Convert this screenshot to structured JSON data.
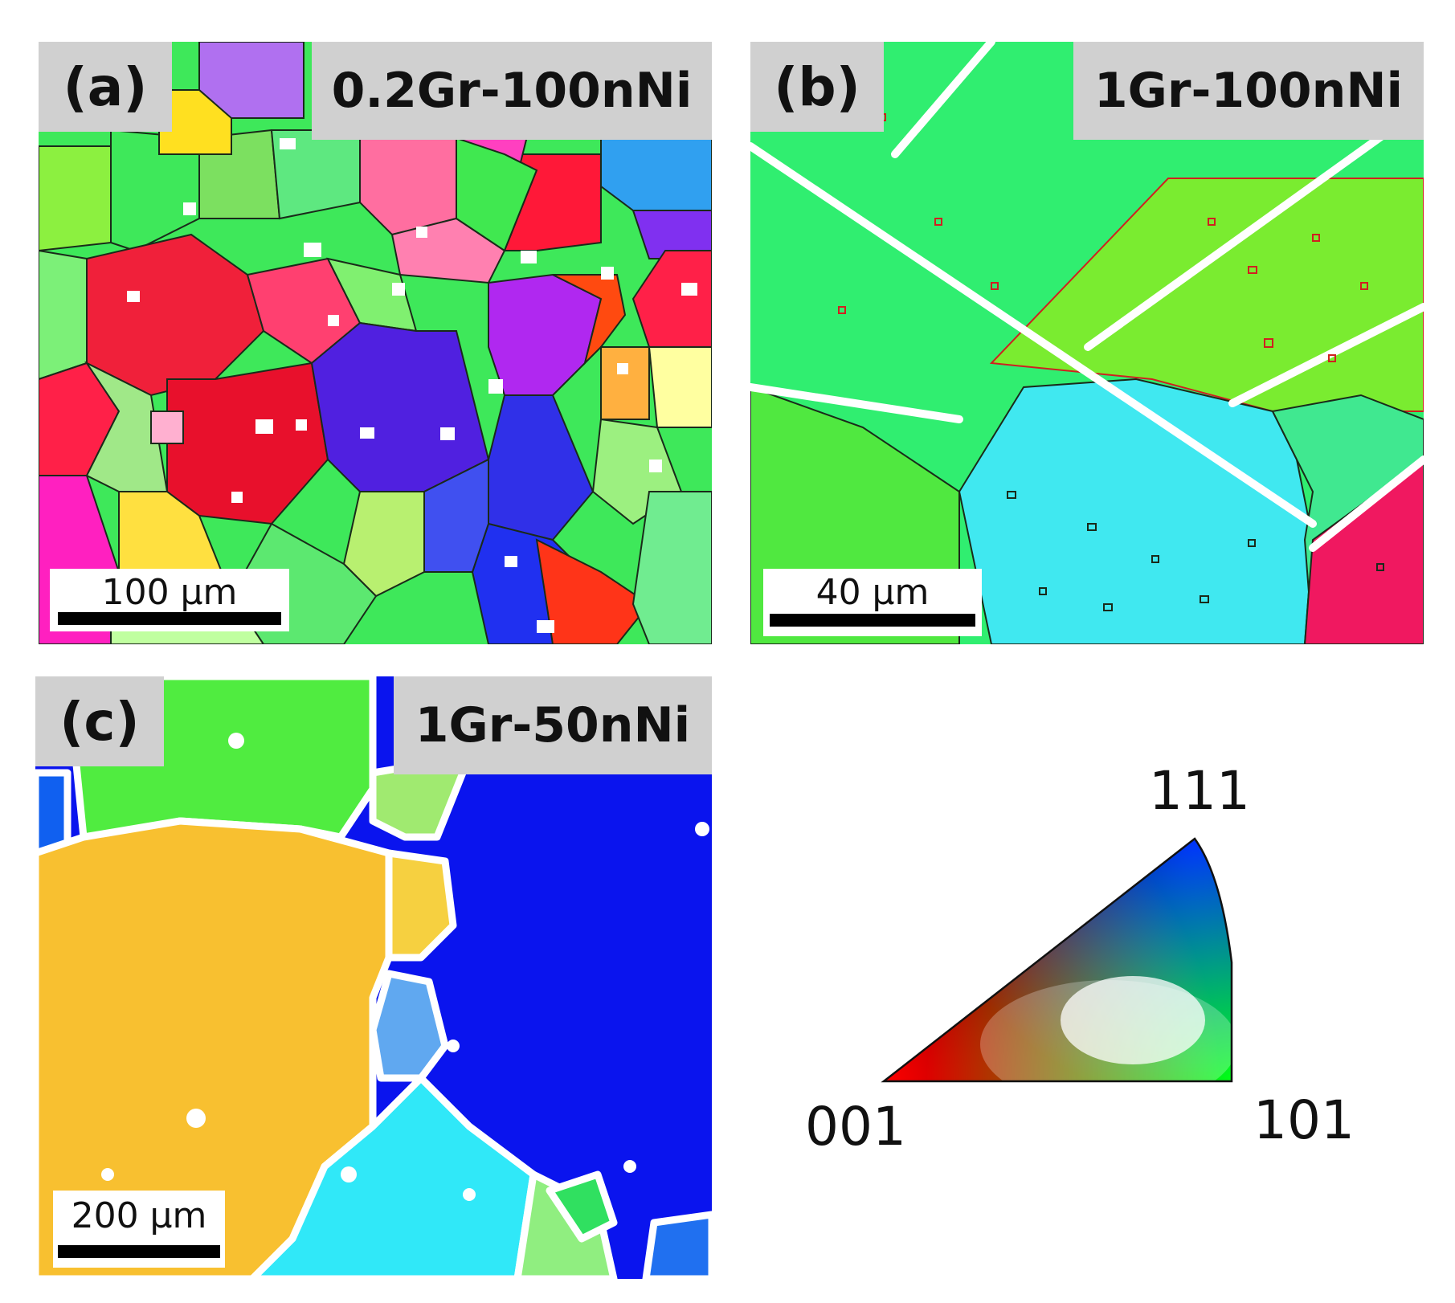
{
  "panels": [
    {
      "letter": "(a)",
      "sample": "0.2Gr-100nNi",
      "scale": "100 μm"
    },
    {
      "letter": "(b)",
      "sample": "1Gr-100nNi",
      "scale": "40 μm"
    },
    {
      "letter": "(c)",
      "sample": "1Gr-50nNi",
      "scale": "200 μm"
    }
  ],
  "ipf_key": {
    "corner_001": "001",
    "corner_101": "101",
    "corner_111": "111"
  },
  "colors": {
    "red_001": "#ff1030",
    "green_101": "#30ee40",
    "blue_111": "#1010ee",
    "boundary": "#000000",
    "twin_boundary": "#d02020"
  },
  "icons": [
    "ipf-triangle-icon"
  ]
}
